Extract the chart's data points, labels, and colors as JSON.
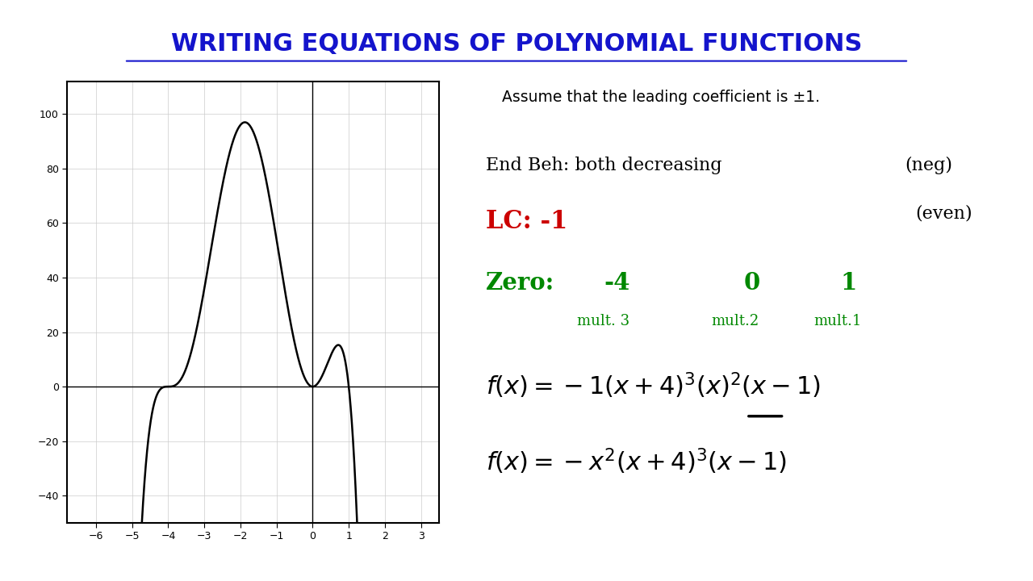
{
  "title": "WRITING EQUATIONS OF POLYNOMIAL FUNCTIONS",
  "title_color": "#1414CC",
  "title_fontsize": 22,
  "xlim": [
    -6.8,
    3.5
  ],
  "ylim": [
    -50,
    112
  ],
  "xticks": [
    -6,
    -5,
    -4,
    -3,
    -2,
    -1,
    0,
    1,
    2,
    3
  ],
  "yticks": [
    -40,
    -20,
    0,
    20,
    40,
    60,
    80,
    100
  ],
  "assume_text": "Assume that the leading coefficient is ±1.",
  "lc_color": "#CC0000",
  "zero_color": "#008800"
}
